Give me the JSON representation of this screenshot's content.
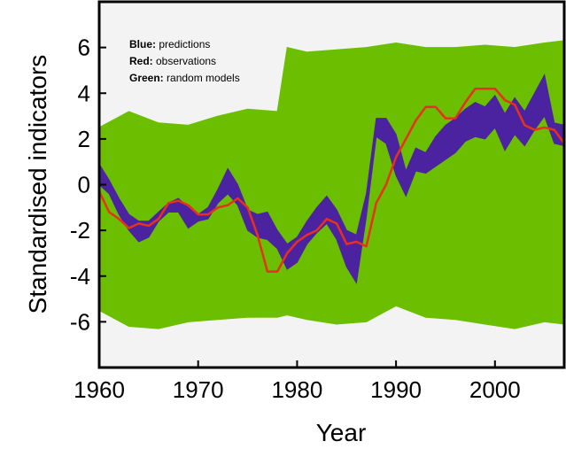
{
  "chart_data": {
    "type": "line",
    "xlabel": "Year",
    "ylabel": "Standardised indicators",
    "xlim": [
      1960,
      2007
    ],
    "ylim": [
      -8,
      8
    ],
    "x_ticks": [
      1960,
      1970,
      1980,
      1990,
      2000
    ],
    "x_tick_labels": [
      "1960",
      "1970",
      "1980",
      "1990",
      "2000"
    ],
    "y_ticks": [
      -6,
      -4,
      -2,
      0,
      2,
      4,
      6
    ],
    "y_tick_labels": [
      "-6",
      "-4",
      "-2",
      "0",
      "2",
      "4",
      "6"
    ],
    "legend": {
      "placement": "top-left",
      "entries": [
        {
          "key": "Blue:",
          "label": " predictions"
        },
        {
          "key": "Red:",
          "label": " observations"
        },
        {
          "key": "Green:",
          "label": " random models"
        }
      ]
    },
    "colors": {
      "random_models": "#6cbf00",
      "predictions": "#4b23a0",
      "observations": "#e8301c",
      "background": "#f3f3f3"
    },
    "random_models_band": {
      "x": [
        1960,
        1963,
        1966,
        1969,
        1972,
        1975,
        1978,
        1979,
        1981,
        1984,
        1987,
        1990,
        1993,
        1996,
        1999,
        2002,
        2005,
        2007
      ],
      "upper": [
        2.5,
        3.2,
        2.7,
        2.6,
        3.0,
        3.3,
        3.2,
        6.0,
        5.8,
        5.9,
        6.0,
        6.2,
        6.0,
        6.0,
        6.1,
        6.0,
        6.2,
        6.3
      ],
      "lower": [
        -5.5,
        -6.2,
        -6.3,
        -6.0,
        -5.9,
        -5.8,
        -5.8,
        -5.7,
        -5.9,
        -6.1,
        -6.0,
        -5.3,
        -5.8,
        -5.9,
        -6.1,
        -6.3,
        -6.0,
        -6.1
      ]
    },
    "series": [
      {
        "name": "predictions",
        "x": [
          1960,
          1961,
          1962,
          1963,
          1964,
          1965,
          1966,
          1967,
          1968,
          1969,
          1970,
          1971,
          1972,
          1973,
          1974,
          1975,
          1976,
          1977,
          1978,
          1979,
          1980,
          1981,
          1982,
          1983,
          1984,
          1985,
          1986,
          1987,
          1988,
          1989,
          1990,
          1991,
          1992,
          1993,
          1994,
          1995,
          1996,
          1997,
          1998,
          1999,
          2000,
          2001,
          2002,
          2003,
          2004,
          2005,
          2006,
          2007
        ],
        "upper": [
          0.9,
          0.2,
          -0.6,
          -1.3,
          -1.6,
          -1.6,
          -1.2,
          -0.8,
          -0.6,
          -1.0,
          -1.3,
          -1.0,
          -0.2,
          0.7,
          0.0,
          -1.1,
          -1.3,
          -1.2,
          -2.0,
          -2.6,
          -2.3,
          -1.6,
          -1.0,
          -0.5,
          -1.1,
          -2.0,
          -2.2,
          -0.4,
          2.9,
          2.9,
          2.2,
          0.6,
          1.6,
          1.4,
          2.1,
          2.6,
          2.9,
          3.3,
          3.6,
          3.4,
          3.9,
          3.1,
          3.8,
          3.2,
          4.0,
          4.8,
          2.7,
          2.6
        ],
        "lower": [
          0.0,
          -0.4,
          -1.3,
          -2.0,
          -2.5,
          -2.3,
          -1.6,
          -1.2,
          -1.2,
          -1.9,
          -1.6,
          -1.5,
          -0.8,
          -0.4,
          -0.9,
          -2.0,
          -2.3,
          -2.4,
          -2.8,
          -3.7,
          -3.4,
          -2.6,
          -2.1,
          -1.7,
          -2.4,
          -3.6,
          -4.3,
          -1.4,
          2.1,
          1.8,
          0.4,
          -0.5,
          0.6,
          0.5,
          0.8,
          1.1,
          1.4,
          1.9,
          2.1,
          2.0,
          2.5,
          1.5,
          2.2,
          1.7,
          2.4,
          3.0,
          1.8,
          1.7
        ]
      },
      {
        "name": "observations",
        "x": [
          1960,
          1961,
          1962,
          1963,
          1964,
          1965,
          1966,
          1967,
          1968,
          1969,
          1970,
          1971,
          1972,
          1973,
          1974,
          1975,
          1976,
          1977,
          1978,
          1979,
          1980,
          1981,
          1982,
          1983,
          1984,
          1985,
          1986,
          1987,
          1988,
          1989,
          1990,
          1991,
          1992,
          1993,
          1994,
          1995,
          1996,
          1997,
          1998,
          1999,
          2000,
          2001,
          2002,
          2003,
          2004,
          2005,
          2006,
          2007
        ],
        "values": [
          -0.3,
          -1.2,
          -1.5,
          -1.9,
          -1.7,
          -1.8,
          -1.5,
          -0.8,
          -0.7,
          -0.9,
          -1.3,
          -1.3,
          -1.0,
          -0.9,
          -0.6,
          -1.0,
          -2.2,
          -3.8,
          -3.8,
          -3.0,
          -2.5,
          -2.2,
          -2.0,
          -1.5,
          -1.7,
          -2.6,
          -2.5,
          -2.7,
          -0.8,
          0.0,
          1.2,
          2.0,
          2.8,
          3.4,
          3.4,
          2.9,
          2.9,
          3.6,
          4.2,
          4.2,
          4.2,
          3.7,
          3.5,
          2.6,
          2.4,
          2.5,
          2.4,
          1.8
        ]
      }
    ]
  }
}
